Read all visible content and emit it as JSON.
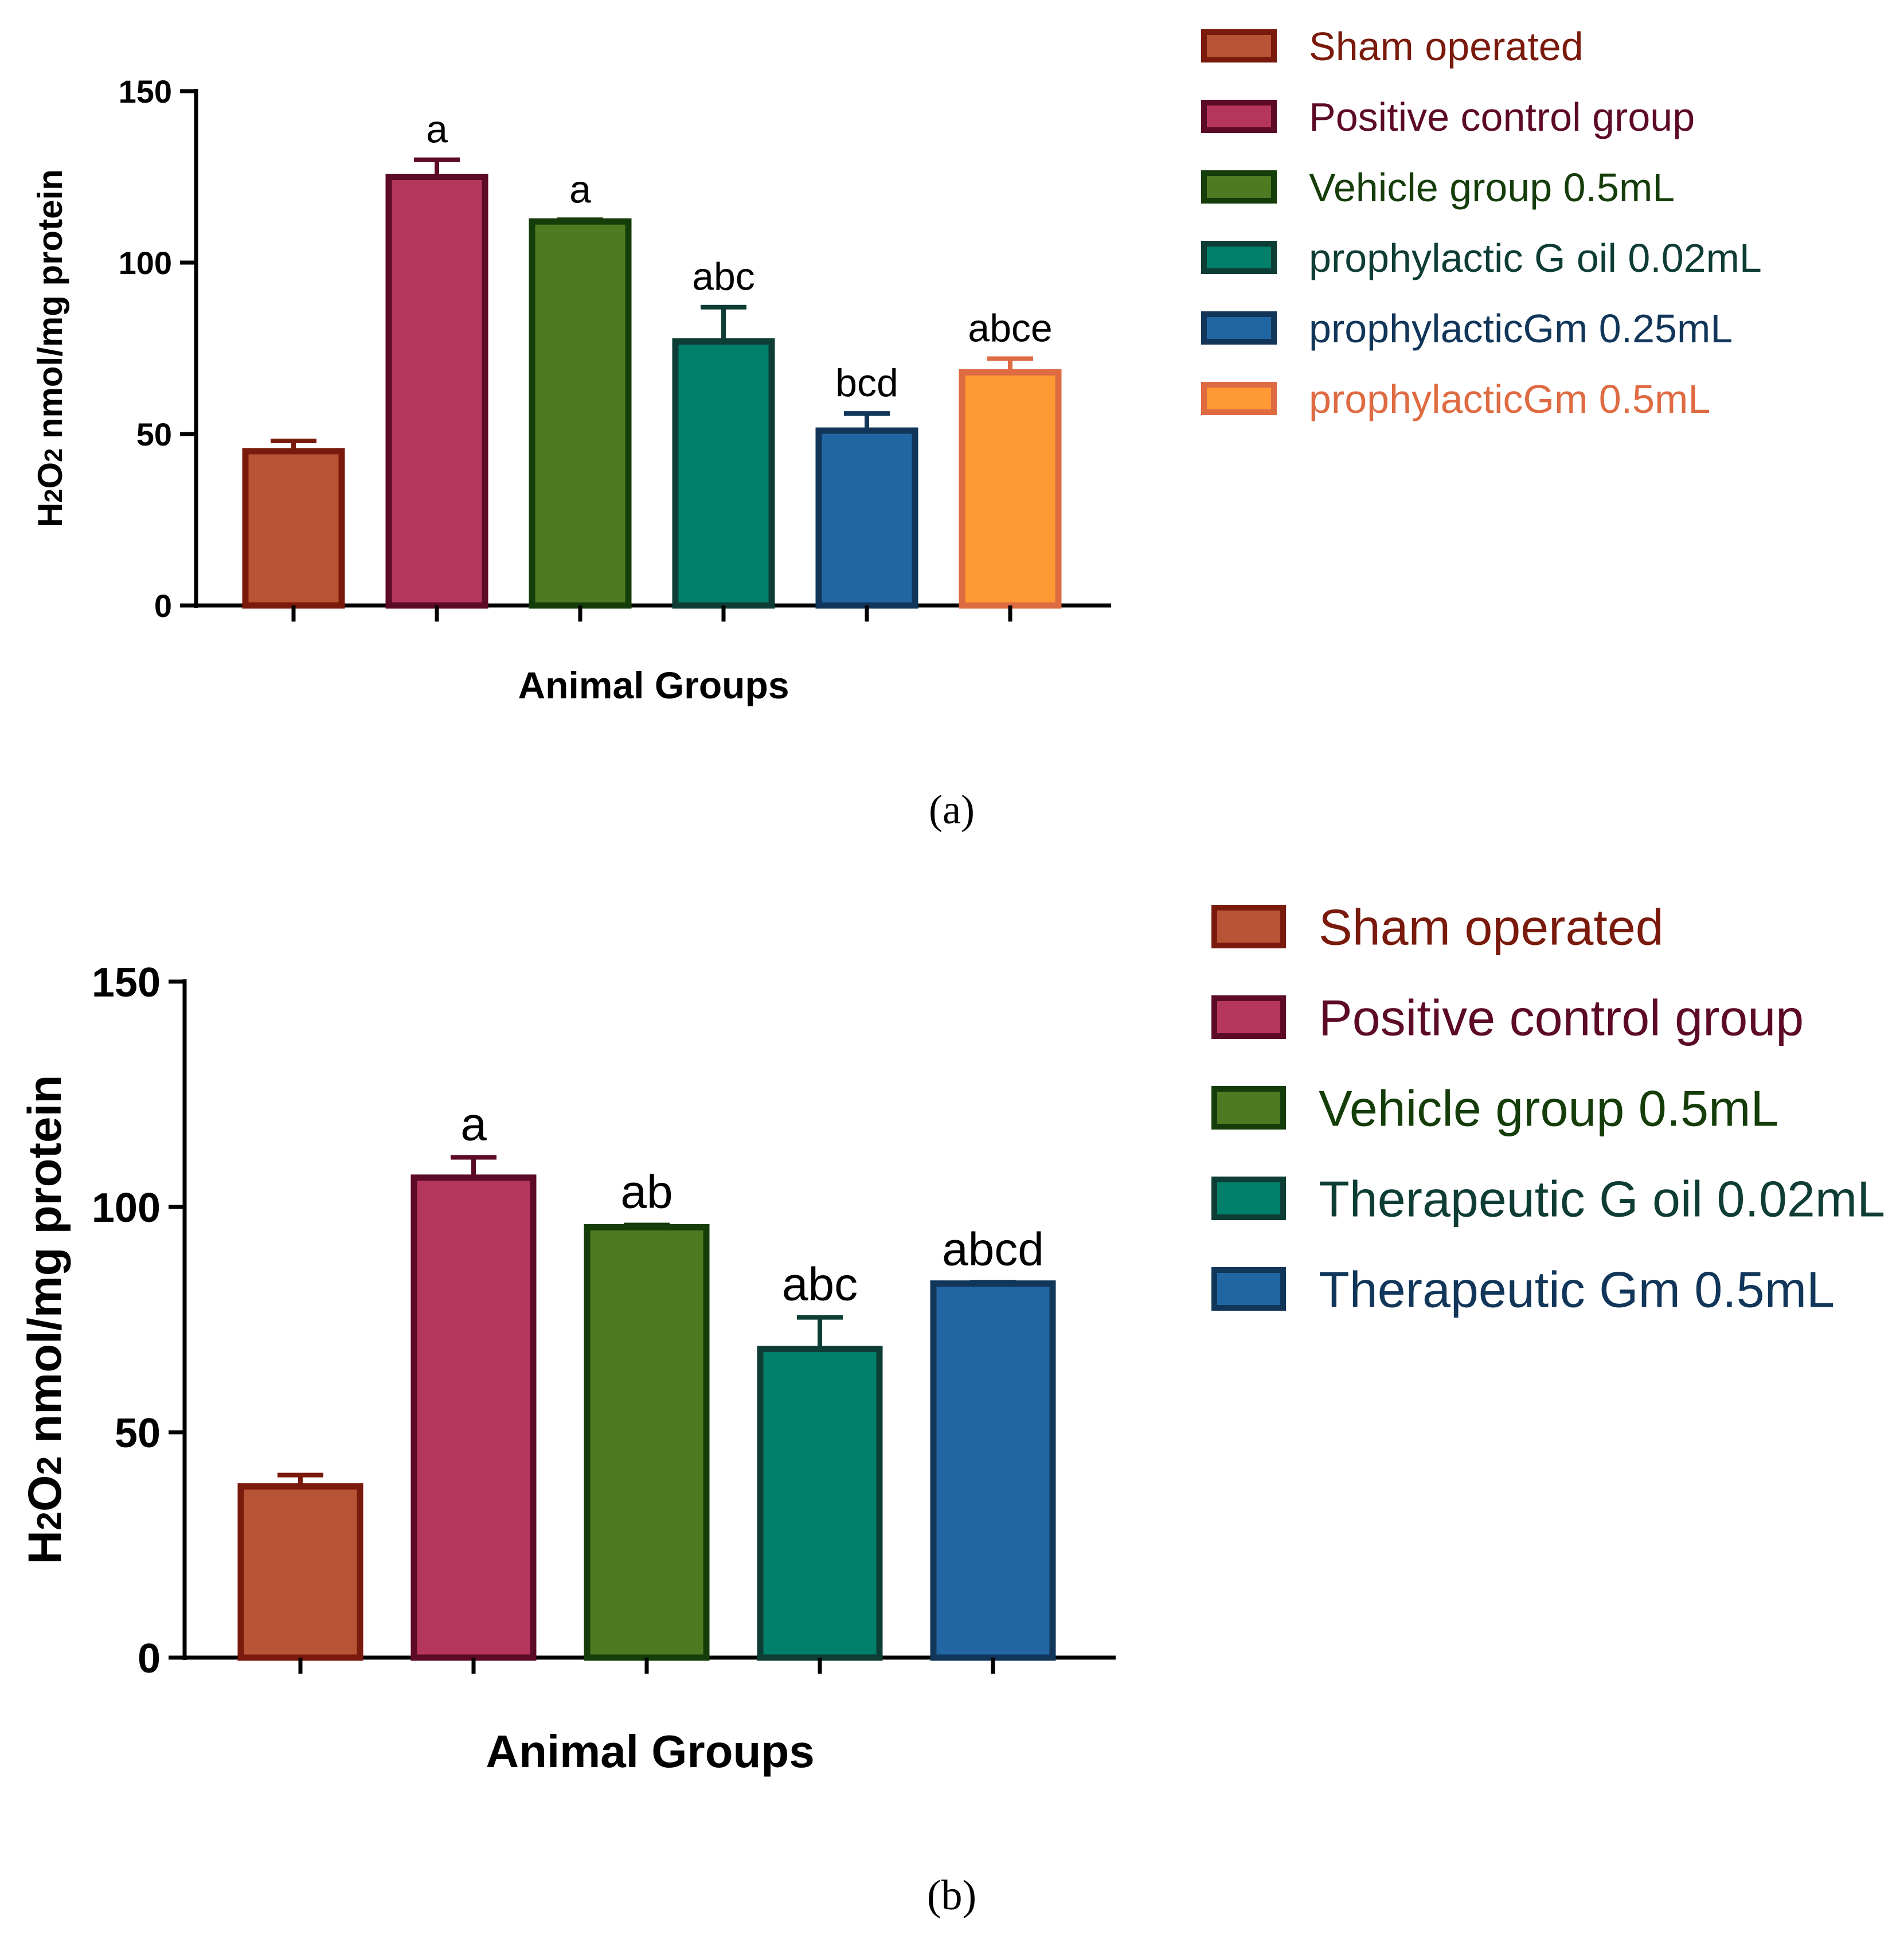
{
  "chart_data": [
    {
      "type": "bar",
      "panel_label": "(a)",
      "ylabel": "H2O2 nmol/mg protein",
      "ylabel_parts": [
        "H",
        "2",
        "O",
        "2",
        " nmol/mg protein"
      ],
      "xlabel": "Animal Groups",
      "ylim": [
        0,
        150
      ],
      "yticks": [
        0,
        50,
        100,
        150
      ],
      "grid": false,
      "legend_position": "right",
      "series": [
        {
          "name": "Sham operated",
          "value": 45,
          "error": 3,
          "label": "",
          "fill": "#B85436",
          "stroke": "#7A1A0C",
          "text_color": "#7A1A0C"
        },
        {
          "name": "Positive control group",
          "value": 125,
          "error": 5,
          "label": "a",
          "fill": "#B5365C",
          "stroke": "#5C0A26",
          "text_color": "#5C0A26"
        },
        {
          "name": "Vehicle group 0.5mL",
          "value": 112,
          "error": 0.5,
          "label": "a",
          "fill": "#4E7A22",
          "stroke": "#153D0A",
          "text_color": "#153D0A"
        },
        {
          "name": "prophylactic G oil 0.02mL",
          "value": 77,
          "error": 10,
          "label": "abc",
          "fill": "#00806A",
          "stroke": "#0E3D35",
          "text_color": "#0E3D35"
        },
        {
          "name": " prophylacticGm 0.25mL",
          "value": 51,
          "error": 5,
          "label": "bcd",
          "fill": "#2166A3",
          "stroke": "#113659",
          "text_color": "#113659"
        },
        {
          "name": "prophylacticGm 0.5mL",
          "value": 68,
          "error": 4,
          "label": "abce",
          "fill": "#FF9933",
          "stroke": "#DE6B42",
          "text_color": "#DE6B42"
        }
      ]
    },
    {
      "type": "bar",
      "panel_label": "(b)",
      "ylabel": "H2O2 nmol/mg protein",
      "ylabel_parts": [
        "H",
        "2",
        "O",
        "2",
        " nmol/mg protein"
      ],
      "xlabel": "Animal Groups",
      "ylim": [
        0,
        150
      ],
      "yticks": [
        0,
        50,
        100,
        150
      ],
      "grid": false,
      "legend_position": "right",
      "series": [
        {
          "name": "Sham operated",
          "value": 38,
          "error": 2.5,
          "label": "",
          "fill": "#B85436",
          "stroke": "#7A1A0C",
          "text_color": "#7A1A0C"
        },
        {
          "name": "Positive control group",
          "value": 106.5,
          "error": 4.5,
          "label": "a",
          "fill": "#B5365C",
          "stroke": "#5C0A26",
          "text_color": "#5C0A26"
        },
        {
          "name": "Vehicle group 0.5mL",
          "value": 95.5,
          "error": 0.5,
          "label": "ab",
          "fill": "#4E7A22",
          "stroke": "#153D0A",
          "text_color": "#153D0A"
        },
        {
          "name": "Therapeutic G oil 0.02mL",
          "value": 68.5,
          "error": 7,
          "label": "abc",
          "fill": "#00806A",
          "stroke": "#0E3D35",
          "text_color": "#0E3D35"
        },
        {
          "name": " Therapeutic Gm 0.5mL",
          "value": 83,
          "error": 0.3,
          "label": "abcd",
          "fill": "#2166A3",
          "stroke": "#113659",
          "text_color": "#113659"
        }
      ]
    }
  ]
}
